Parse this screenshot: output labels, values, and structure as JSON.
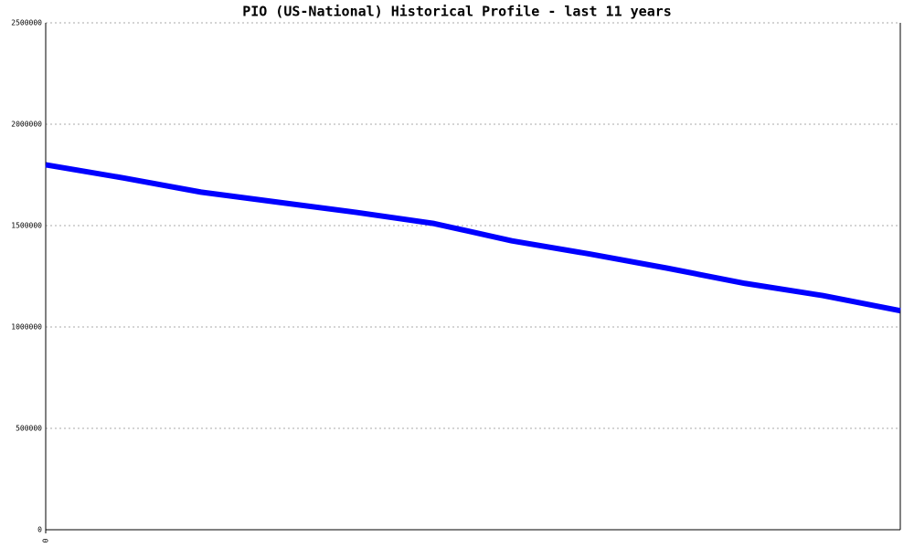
{
  "chart_data": {
    "type": "line",
    "title": "PIO (US-National) Historical Profile - last 11 years",
    "x": [
      0,
      1,
      2,
      3,
      4,
      5,
      6,
      7,
      8,
      9,
      10,
      11
    ],
    "series": [
      {
        "color": "#0000ff",
        "values": [
          1800000,
          1735000,
          1665000,
          1615000,
          1565000,
          1510000,
          1425000,
          1360000,
          1290000,
          1215000,
          1155000,
          1080000
        ]
      }
    ],
    "xlim": [
      0,
      11
    ],
    "xticks": [
      0
    ],
    "ylim": [
      0,
      2500000
    ],
    "yticks": [
      0,
      500000,
      1000000,
      1500000,
      2000000,
      2500000
    ],
    "grid": true
  }
}
